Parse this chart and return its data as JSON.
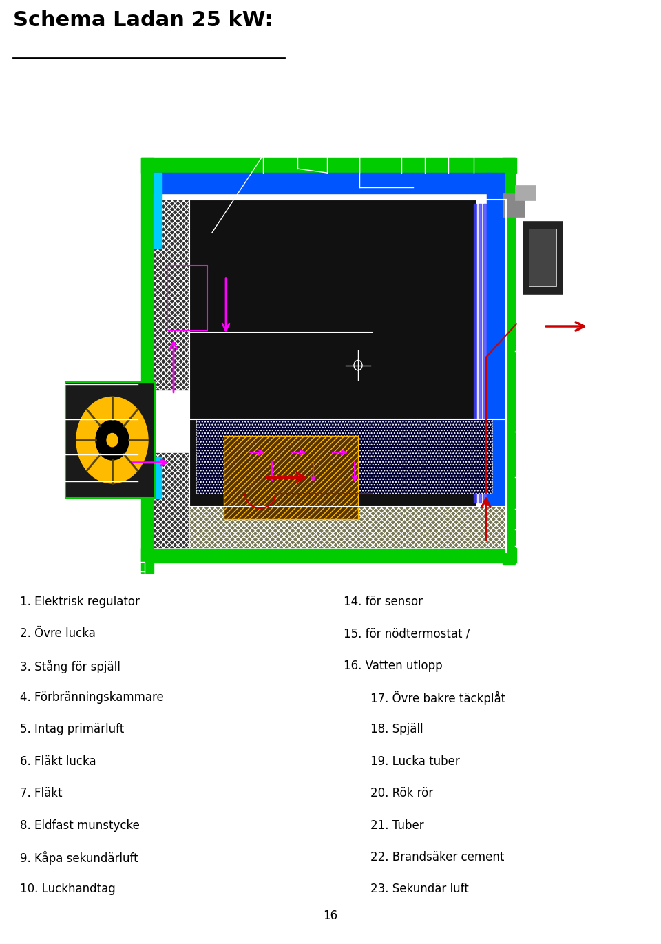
{
  "title": "Schema Ladan 25 kW:",
  "page_number": "16",
  "page_bg": "#ffffff",
  "legend_left": [
    "1. Elektrisk regulator",
    "2. Övre lucka",
    "3. Stång för spjäll",
    "4. Förbränningskammare",
    "5. Intag primärluft",
    "6. Fläkt lucka",
    "7. Fläkt",
    "8. Eldfast munstycke",
    "9. Kåpa sekundärluft",
    "10. Luckhandtag"
  ],
  "legend_right": [
    "14. för sensor",
    "15. för nödtermostat /",
    "16. Vatten utlopp",
    "17. Övre bakre täckplåt",
    "18. Spjäll",
    "19. Lucka tuber",
    "20. Rök rör",
    "21. Tuber",
    "22. Brandsäker cement",
    "23. Sekundär luft"
  ],
  "GREEN": "#00cc00",
  "BLUE": "#0055ff",
  "CYAN": "#00ccff",
  "MAG": "#ff00ff",
  "RED": "#cc0000",
  "YELLOW": "#ffbb00",
  "GRAY": "#888888",
  "WHITE": "#ffffff",
  "BLACK": "#000000"
}
